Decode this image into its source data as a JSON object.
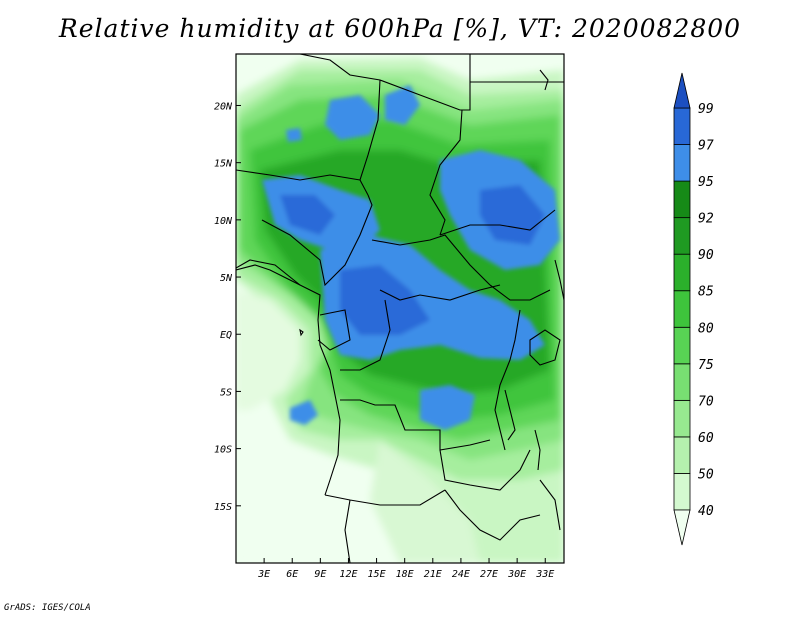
{
  "title": "Relative humidity at 600hPa [%], VT: 2020082800",
  "credit": "GrADS: IGES/COLA",
  "map": {
    "lon_range": [
      0,
      35
    ],
    "lat_range": [
      -20,
      24.5
    ],
    "x_ticks": [
      "3E",
      "6E",
      "9E",
      "12E",
      "15E",
      "18E",
      "21E",
      "24E",
      "27E",
      "30E",
      "33E"
    ],
    "x_tick_values": [
      3,
      6,
      9,
      12,
      15,
      18,
      21,
      24,
      27,
      30,
      33
    ],
    "y_ticks": [
      "20N",
      "15N",
      "10N",
      "5N",
      "EQ",
      "5S",
      "10S",
      "15S"
    ],
    "y_tick_values": [
      20,
      15,
      10,
      5,
      0,
      -5,
      -10,
      -15
    ]
  },
  "colorbar": {
    "labels": [
      "40",
      "50",
      "60",
      "70",
      "75",
      "80",
      "85",
      "90",
      "92",
      "95",
      "97",
      "99"
    ],
    "colors": [
      "#f0fff0",
      "#d4f9d0",
      "#b5f1ae",
      "#97e990",
      "#78df72",
      "#58d354",
      "#3ec43c",
      "#2bb02b",
      "#1f9a22",
      "#168a17",
      "#3e8ee8",
      "#2868d6",
      "#1c4fc0"
    ]
  },
  "colors": {
    "background": "#f0fff0",
    "border": "#000000"
  }
}
